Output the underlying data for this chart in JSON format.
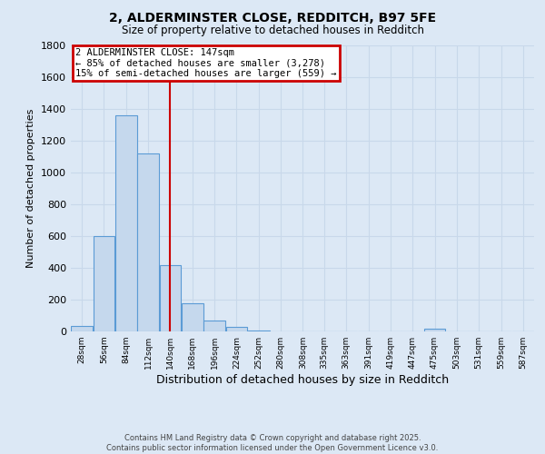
{
  "title1": "2, ALDERMINSTER CLOSE, REDDITCH, B97 5FE",
  "title2": "Size of property relative to detached houses in Redditch",
  "xlabel": "Distribution of detached houses by size in Redditch",
  "ylabel": "Number of detached properties",
  "bin_labels": [
    "28sqm",
    "56sqm",
    "84sqm",
    "112sqm",
    "140sqm",
    "168sqm",
    "196sqm",
    "224sqm",
    "252sqm",
    "280sqm",
    "308sqm",
    "335sqm",
    "363sqm",
    "391sqm",
    "419sqm",
    "447sqm",
    "475sqm",
    "503sqm",
    "531sqm",
    "559sqm",
    "587sqm"
  ],
  "bin_starts": [
    28,
    56,
    84,
    112,
    140,
    168,
    196,
    224,
    252,
    280,
    308,
    335,
    363,
    391,
    419,
    447,
    475,
    503,
    531,
    559,
    587
  ],
  "values": [
    35,
    600,
    1360,
    1120,
    420,
    180,
    70,
    30,
    5,
    0,
    0,
    0,
    0,
    0,
    0,
    0,
    15,
    0,
    0,
    0,
    0
  ],
  "bar_color": "#c5d8ed",
  "bar_edge_color": "#5b9bd5",
  "grid_color": "#c8d8ea",
  "background_color": "#dce8f5",
  "red_line_x": 154,
  "annotation_line1": "2 ALDERMINSTER CLOSE: 147sqm",
  "annotation_line2": "← 85% of detached houses are smaller (3,278)",
  "annotation_line3": "15% of semi-detached houses are larger (559) →",
  "annotation_box_color": "#ffffff",
  "annotation_border_color": "#cc0000",
  "red_line_color": "#cc0000",
  "ylim": [
    0,
    1800
  ],
  "yticks": [
    0,
    200,
    400,
    600,
    800,
    1000,
    1200,
    1400,
    1600,
    1800
  ],
  "footnote1": "Contains HM Land Registry data © Crown copyright and database right 2025.",
  "footnote2": "Contains public sector information licensed under the Open Government Licence v3.0."
}
